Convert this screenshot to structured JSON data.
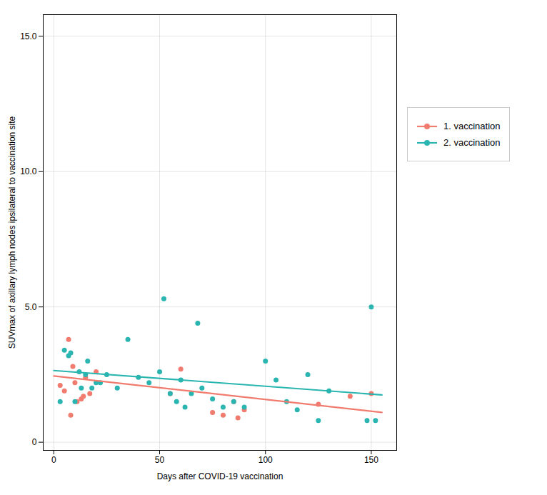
{
  "chart_data": {
    "type": "scatter",
    "xlabel": "Days after COVID-19 vaccination",
    "ylabel": "SUVmax of axillary lymph nodes ipsilateral to vaccination site",
    "xlim": [
      -5,
      162
    ],
    "ylim": [
      -0.3,
      15.8
    ],
    "xticks": [
      0,
      50,
      100,
      150
    ],
    "yticks": [
      0,
      {
        "value": 5.0,
        "label": "5.0"
      },
      {
        "value": 10.0,
        "label": "10.0"
      },
      {
        "value": 15.0,
        "label": "15.0"
      }
    ],
    "grid": true,
    "legend": "right",
    "series": [
      {
        "name": "1. vaccination",
        "color": "#f07b6e",
        "marker": "circle",
        "x": [
          3,
          5,
          7,
          8,
          9,
          10,
          11,
          13,
          14,
          15,
          17,
          20,
          55,
          60,
          75,
          80,
          85,
          87,
          90,
          125,
          140,
          150
        ],
        "values": [
          2.1,
          1.9,
          3.8,
          1.0,
          2.8,
          2.2,
          1.5,
          1.6,
          1.7,
          2.4,
          1.8,
          2.6,
          1.8,
          2.7,
          1.1,
          1.0,
          1.5,
          0.9,
          1.2,
          1.4,
          1.7,
          1.8
        ],
        "trend_x": [
          0,
          155
        ],
        "trend_values": [
          2.45,
          1.1
        ]
      },
      {
        "name": "2. vaccination",
        "color": "#2ab5b0",
        "marker": "circle",
        "x": [
          3,
          5,
          7,
          8,
          10,
          12,
          13,
          15,
          16,
          18,
          20,
          22,
          25,
          30,
          35,
          40,
          45,
          50,
          52,
          55,
          58,
          60,
          62,
          65,
          68,
          70,
          75,
          80,
          85,
          90,
          100,
          105,
          110,
          115,
          120,
          125,
          130,
          148,
          150,
          152
        ],
        "values": [
          1.5,
          3.4,
          3.2,
          3.3,
          1.5,
          2.6,
          2.0,
          2.5,
          3.0,
          2.0,
          2.2,
          2.2,
          2.5,
          2.0,
          3.8,
          2.4,
          2.2,
          2.6,
          5.3,
          1.8,
          1.5,
          2.3,
          1.3,
          1.8,
          4.4,
          2.0,
          1.6,
          1.3,
          1.5,
          1.3,
          3.0,
          2.3,
          1.5,
          1.2,
          2.5,
          0.8,
          1.9,
          0.8,
          5.0,
          0.8
        ],
        "trend_x": [
          0,
          155
        ],
        "trend_values": [
          2.65,
          1.75
        ]
      }
    ]
  }
}
